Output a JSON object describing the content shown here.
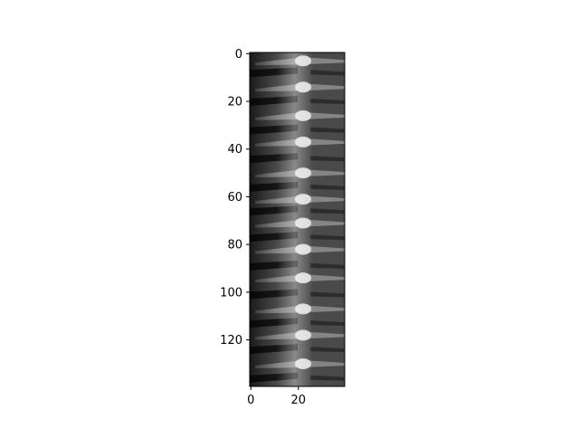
{
  "chart_data": {
    "type": "heatmap",
    "colormap": "gray",
    "description": "",
    "x_ticks": [
      0,
      20
    ],
    "x_tick_labels": [
      "0",
      "20"
    ],
    "xlim": [
      -0.5,
      39.5
    ],
    "y_ticks": [
      0,
      20,
      40,
      60,
      80,
      100,
      120
    ],
    "y_tick_labels": [
      "0",
      "20",
      "40",
      "60",
      "80",
      "100",
      "120"
    ],
    "ylim": [
      139.5,
      -0.5
    ],
    "grid": false,
    "legend": "none",
    "image_shape": [
      140,
      40
    ],
    "bright_spine_x": 22,
    "bright_band_rows": [
      3,
      14,
      26,
      37,
      50,
      61,
      71,
      82,
      94,
      107,
      118,
      130
    ],
    "dark_band_rows": [
      8,
      20,
      32,
      44,
      56,
      66,
      77,
      89,
      101,
      113,
      124,
      136
    ]
  }
}
